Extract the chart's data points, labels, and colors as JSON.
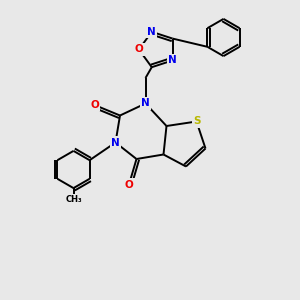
{
  "background_color": "#e8e8e8",
  "atom_colors": {
    "N": "#0000ee",
    "O": "#ee0000",
    "S": "#b8b800",
    "C": "#000000"
  },
  "bond_color": "#000000",
  "figsize": [
    3.0,
    3.0
  ],
  "dpi": 100,
  "lw": 1.4
}
